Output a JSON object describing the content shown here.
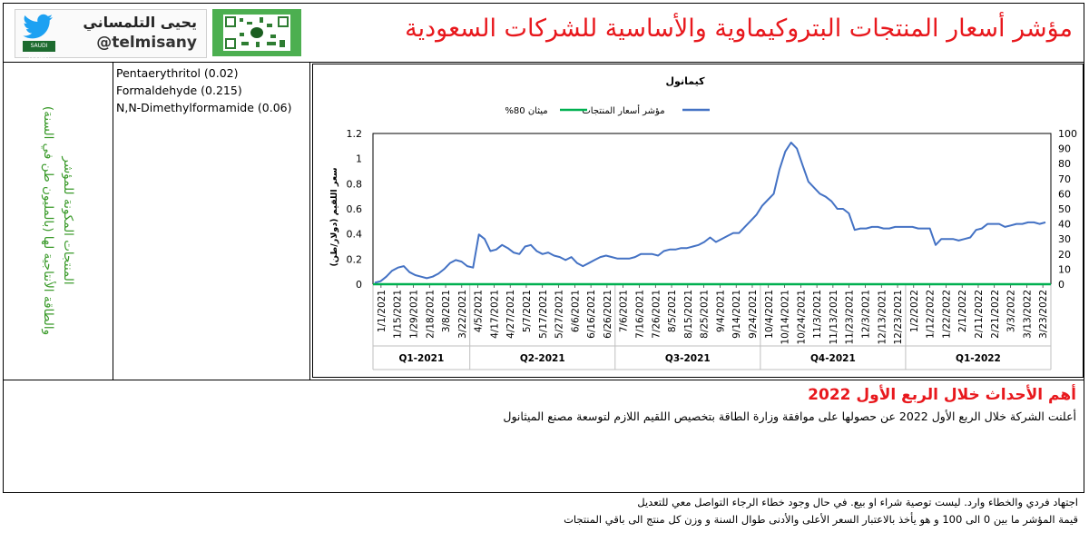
{
  "header": {
    "title": "مؤشر أسعار المنتجات البتروكيماوية والأساسية للشركات السعودية",
    "logo_name": "يحيى التلمساني",
    "logo_handle": "@telmisany",
    "flag_label": "SAUDI ARABIA"
  },
  "side_label": {
    "line1": "المنتجات المكونة للمؤشر",
    "line2": "والطاقة الأنتاجية لها (بالمليون طن في السنة)"
  },
  "products": [
    "Pentaerythritol (0.02)",
    "Formaldehyde (0.215)",
    "N,N-Dimethylformamide (0.06)"
  ],
  "events": {
    "title": "أهم الأحداث خلال الربع الأول 2022",
    "text": "أعلنت الشركة خلال الربع الأول 2022 عن حصولها على موافقة وزارة الطاقة بتخصيص اللقيم اللازم لتوسعة مصنع الميثانول"
  },
  "footer": {
    "line1": "اجتهاد فردي والخطاء وارد. ليست توصية شراء او بيع. في حال وجود خطاء الرجاء التواصل معي للتعديل",
    "line2": "قيمة المؤشر ما بين 0 الى 100 و هو يأخذ بالاعتبار السعر الأعلى والأدنى طوال السنة و وزن كل منتج الى باقي المنتجات"
  },
  "chart_data": {
    "type": "line",
    "title": "كيمانول",
    "ylabel": "سعر اللقيم (دولار/طن)",
    "legend_position": "top",
    "left_axis": {
      "ylim": [
        0,
        1.2
      ],
      "ticks": [
        0,
        0.2,
        0.4,
        0.6,
        0.8,
        1,
        1.2
      ]
    },
    "right_axis": {
      "ylim": [
        0,
        100
      ],
      "ticks": [
        0,
        10,
        20,
        30,
        40,
        50,
        60,
        70,
        80,
        90,
        100
      ]
    },
    "x_ticks": [
      "1/1/2021",
      "1/15/2021",
      "1/29/2021",
      "2/18/2021",
      "3/8/2021",
      "3/22/2021",
      "4/5/2021",
      "4/17/2021",
      "4/27/2021",
      "5/7/2021",
      "5/17/2021",
      "5/27/2021",
      "6/6/2021",
      "6/16/2021",
      "6/26/2021",
      "7/6/2021",
      "7/16/2021",
      "7/26/2021",
      "8/5/2021",
      "8/15/2021",
      "8/25/2021",
      "9/4/2021",
      "9/14/2021",
      "9/24/2021",
      "10/4/2021",
      "10/14/2021",
      "10/24/2021",
      "11/3/2021",
      "11/13/2021",
      "11/23/2021",
      "12/3/2021",
      "12/13/2021",
      "12/23/2021",
      "1/2/2022",
      "1/12/2022",
      "1/22/2022",
      "2/1/2022",
      "2/11/2022",
      "2/21/2022",
      "3/3/2022",
      "3/13/2022",
      "3/23/2022"
    ],
    "quarters": [
      "Q1-2021",
      "Q2-2021",
      "Q3-2021",
      "Q4-2021",
      "Q1-2022"
    ],
    "series": [
      {
        "name": "مؤشر أسعار المنتجات",
        "color": "#4472c4",
        "axis": "right",
        "values": [
          1,
          2,
          5,
          9,
          11,
          12,
          8,
          6,
          5,
          4,
          5,
          7,
          10,
          14,
          16,
          15,
          12,
          11,
          33,
          30,
          22,
          23,
          26,
          24,
          21,
          20,
          25,
          26,
          22,
          20,
          21,
          19,
          18,
          16,
          18,
          14,
          12,
          14,
          16,
          18,
          19,
          18,
          17,
          17,
          17,
          18,
          20,
          20,
          20,
          19,
          22,
          23,
          23,
          24,
          24,
          25,
          26,
          28,
          31,
          28,
          30,
          32,
          34,
          34,
          38,
          42,
          46,
          52,
          56,
          60,
          76,
          88,
          94,
          90,
          79,
          68,
          64,
          60,
          58,
          55,
          50,
          50,
          47,
          36,
          37,
          37,
          38,
          38,
          37,
          37,
          38,
          38,
          38,
          38,
          37,
          37,
          37,
          26,
          30,
          30,
          30,
          29,
          30,
          31,
          36,
          37,
          40,
          40,
          40,
          38,
          39,
          40,
          40,
          41,
          41,
          40,
          41
        ]
      },
      {
        "name": "ميثان 80%",
        "color": "#00b050",
        "axis": "right",
        "values": [
          0,
          0
        ]
      }
    ]
  }
}
